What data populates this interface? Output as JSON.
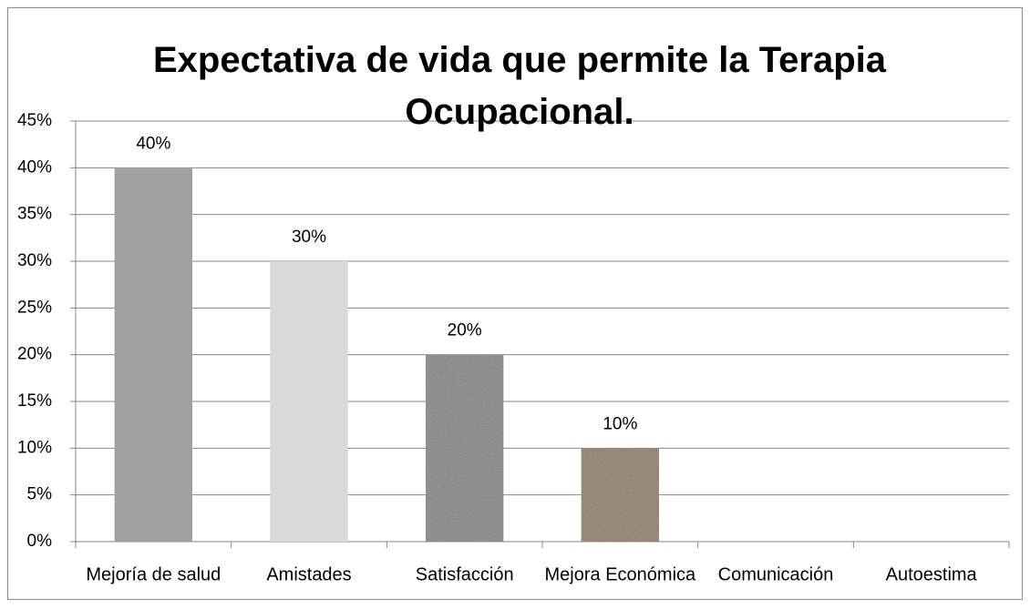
{
  "chart_data": {
    "type": "bar",
    "title": "Expectativa de vida que permite la Terapia Ocupacional.",
    "categories": [
      "Mejoría de salud",
      "Amistades",
      "Satisfacción",
      "Mejora Económica",
      "Comunicación",
      "Autoestima"
    ],
    "values": [
      40,
      30,
      20,
      10,
      null,
      null
    ],
    "value_labels": [
      "40%",
      "30%",
      "20%",
      "10%",
      null,
      null
    ],
    "colors": [
      "#a0a0a0",
      "#d9d9d9",
      "#9c9c9c",
      "#a39585",
      null,
      null
    ],
    "ylim": [
      0,
      45
    ],
    "yticks": [
      {
        "value": 0,
        "label": "0%"
      },
      {
        "value": 5,
        "label": "5%"
      },
      {
        "value": 10,
        "label": "10%"
      },
      {
        "value": 15,
        "label": "15%"
      },
      {
        "value": 20,
        "label": "20%"
      },
      {
        "value": 25,
        "label": "25%"
      },
      {
        "value": 30,
        "label": "30%"
      },
      {
        "value": 35,
        "label": "35%"
      },
      {
        "value": 40,
        "label": "40%"
      },
      {
        "value": 45,
        "label": "45%"
      }
    ],
    "grid": true
  }
}
